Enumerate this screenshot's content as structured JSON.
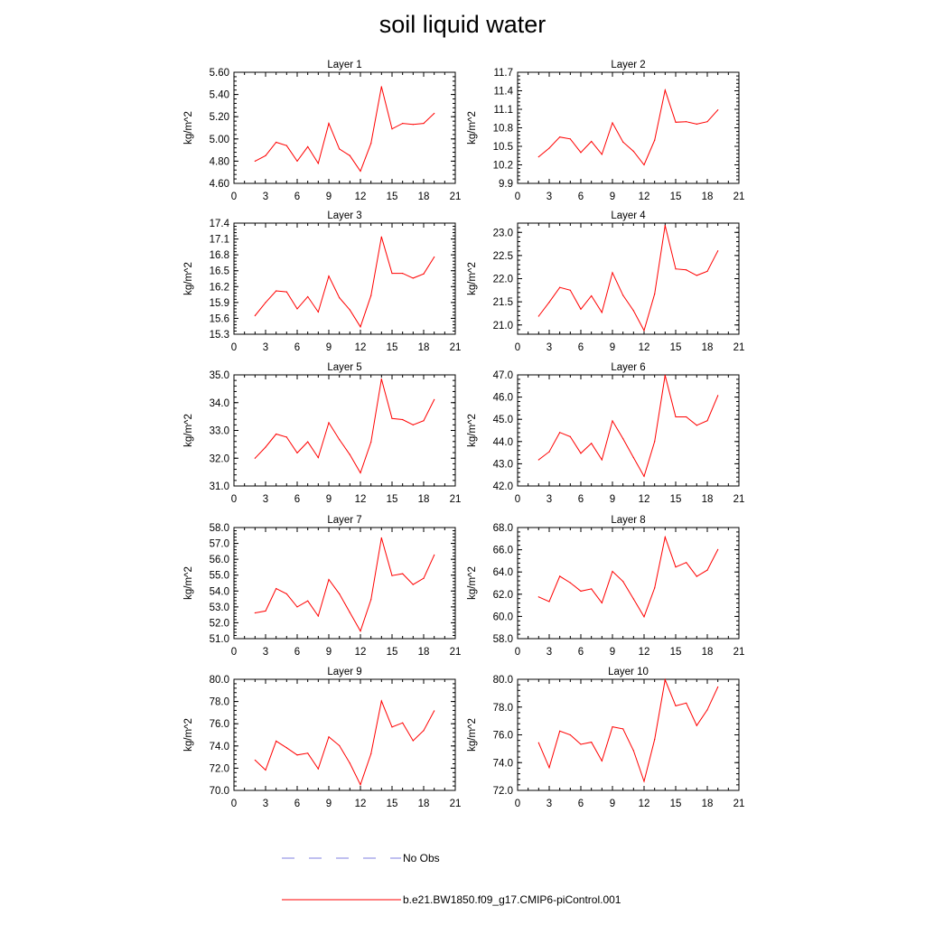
{
  "title": "soil liquid water",
  "colors": {
    "model": "#ff0000",
    "obs": "#8080e0",
    "axis": "#000000"
  },
  "legend": [
    {
      "label": "No Obs",
      "style": "dashed",
      "color": "#8080e0"
    },
    {
      "label": "b.e21.BW1850.f09_g17.CMIP6-piControl.001",
      "style": "solid",
      "color": "#ff0000"
    }
  ],
  "chart_data": [
    {
      "type": "line",
      "title": "Layer 1",
      "ylabel": "kg/m^2",
      "xlim": [
        0,
        21
      ],
      "xticks": [
        0,
        3,
        6,
        9,
        12,
        15,
        18,
        21
      ],
      "ylim": [
        4.6,
        5.6
      ],
      "yticks": [
        "4.60",
        "4.80",
        "5.00",
        "5.20",
        "5.40",
        "5.60"
      ],
      "x": [
        2,
        3,
        4,
        5,
        6,
        7,
        8,
        9,
        10,
        11,
        12,
        13,
        14,
        15,
        16,
        17,
        18,
        19
      ],
      "series": [
        {
          "values": [
            4.8,
            4.85,
            4.97,
            4.94,
            4.8,
            4.93,
            4.78,
            5.14,
            4.91,
            4.85,
            4.71,
            4.96,
            5.47,
            5.09,
            5.14,
            5.13,
            5.14,
            5.23
          ]
        }
      ]
    },
    {
      "type": "line",
      "title": "Layer 2",
      "ylabel": "kg/m^2",
      "xlim": [
        0,
        21
      ],
      "xticks": [
        0,
        3,
        6,
        9,
        12,
        15,
        18,
        21
      ],
      "ylim": [
        9.9,
        11.7
      ],
      "yticks": [
        "9.9",
        "10.2",
        "10.5",
        "10.8",
        "11.1",
        "11.4",
        "11.7"
      ],
      "x": [
        2,
        3,
        4,
        5,
        6,
        7,
        8,
        9,
        10,
        11,
        12,
        13,
        14,
        15,
        16,
        17,
        18,
        19
      ],
      "series": [
        {
          "values": [
            10.33,
            10.47,
            10.65,
            10.62,
            10.4,
            10.58,
            10.37,
            10.88,
            10.57,
            10.42,
            10.2,
            10.6,
            11.41,
            10.89,
            10.9,
            10.86,
            10.9,
            11.09
          ]
        }
      ]
    },
    {
      "type": "line",
      "title": "Layer 3",
      "ylabel": "kg/m^2",
      "xlim": [
        0,
        21
      ],
      "xticks": [
        0,
        3,
        6,
        9,
        12,
        15,
        18,
        21
      ],
      "ylim": [
        15.3,
        17.4
      ],
      "yticks": [
        "15.3",
        "15.6",
        "15.9",
        "16.2",
        "16.5",
        "16.8",
        "17.1",
        "17.4"
      ],
      "x": [
        2,
        3,
        4,
        5,
        6,
        7,
        8,
        9,
        10,
        11,
        12,
        13,
        14,
        15,
        16,
        17,
        18,
        19
      ],
      "series": [
        {
          "values": [
            15.65,
            15.9,
            16.12,
            16.1,
            15.78,
            16.01,
            15.72,
            16.4,
            15.99,
            15.76,
            15.44,
            16.03,
            17.14,
            16.45,
            16.45,
            16.36,
            16.44,
            16.76
          ]
        }
      ]
    },
    {
      "type": "line",
      "title": "Layer 4",
      "ylabel": "kg/m^2",
      "xlim": [
        0,
        21
      ],
      "xticks": [
        0,
        3,
        6,
        9,
        12,
        15,
        18,
        21
      ],
      "ylim": [
        20.8,
        23.2
      ],
      "yticks": [
        "21.0",
        "21.5",
        "22.0",
        "22.5",
        "23.0"
      ],
      "x": [
        2,
        3,
        4,
        5,
        6,
        7,
        8,
        9,
        10,
        11,
        12,
        13,
        14,
        15,
        16,
        17,
        18,
        19
      ],
      "series": [
        {
          "values": [
            21.19,
            21.49,
            21.81,
            21.75,
            21.34,
            21.63,
            21.27,
            22.13,
            21.64,
            21.31,
            20.88,
            21.67,
            23.15,
            22.21,
            22.19,
            22.07,
            22.16,
            22.6
          ]
        }
      ]
    },
    {
      "type": "line",
      "title": "Layer 5",
      "ylabel": "kg/m^2",
      "xlim": [
        0,
        21
      ],
      "xticks": [
        0,
        3,
        6,
        9,
        12,
        15,
        18,
        21
      ],
      "ylim": [
        31.0,
        35.0
      ],
      "yticks": [
        "31.0",
        "32.0",
        "33.0",
        "34.0",
        "35.0"
      ],
      "x": [
        2,
        3,
        4,
        5,
        6,
        7,
        8,
        9,
        10,
        11,
        12,
        13,
        14,
        15,
        16,
        17,
        18,
        19
      ],
      "series": [
        {
          "values": [
            32.0,
            32.4,
            32.87,
            32.76,
            32.19,
            32.59,
            32.02,
            33.28,
            32.67,
            32.13,
            31.47,
            32.58,
            34.85,
            33.43,
            33.39,
            33.2,
            33.35,
            34.11
          ]
        }
      ]
    },
    {
      "type": "line",
      "title": "Layer 6",
      "ylabel": "kg/m^2",
      "xlim": [
        0,
        21
      ],
      "xticks": [
        0,
        3,
        6,
        9,
        12,
        15,
        18,
        21
      ],
      "ylim": [
        42.0,
        47.0
      ],
      "yticks": [
        "42.0",
        "43.0",
        "44.0",
        "45.0",
        "46.0",
        "47.0"
      ],
      "x": [
        2,
        3,
        4,
        5,
        6,
        7,
        8,
        9,
        10,
        11,
        12,
        13,
        14,
        15,
        16,
        17,
        18,
        19
      ],
      "series": [
        {
          "values": [
            43.18,
            43.54,
            44.41,
            44.22,
            43.47,
            43.92,
            43.18,
            44.93,
            44.13,
            43.28,
            42.43,
            44.0,
            46.98,
            45.11,
            45.11,
            44.73,
            44.94,
            46.07
          ]
        }
      ]
    },
    {
      "type": "line",
      "title": "Layer 7",
      "ylabel": "kg/m^2",
      "xlim": [
        0,
        21
      ],
      "xticks": [
        0,
        3,
        6,
        9,
        12,
        15,
        18,
        21
      ],
      "ylim": [
        51.0,
        58.0
      ],
      "yticks": [
        "51.0",
        "52.0",
        "53.0",
        "54.0",
        "55.0",
        "56.0",
        "57.0",
        "58.0"
      ],
      "x": [
        2,
        3,
        4,
        5,
        6,
        7,
        8,
        9,
        10,
        11,
        12,
        13,
        14,
        15,
        16,
        17,
        18,
        19
      ],
      "series": [
        {
          "values": [
            52.62,
            52.74,
            54.16,
            53.82,
            53.0,
            53.38,
            52.42,
            54.73,
            53.82,
            52.65,
            51.48,
            53.46,
            57.35,
            54.97,
            55.09,
            54.41,
            54.8,
            56.27
          ]
        }
      ]
    },
    {
      "type": "line",
      "title": "Layer 8",
      "ylabel": "kg/m^2",
      "xlim": [
        0,
        21
      ],
      "xticks": [
        0,
        3,
        6,
        9,
        12,
        15,
        18,
        21
      ],
      "ylim": [
        58.0,
        68.0
      ],
      "yticks": [
        "58.0",
        "60.0",
        "62.0",
        "64.0",
        "66.0",
        "68.0"
      ],
      "x": [
        2,
        3,
        4,
        5,
        6,
        7,
        8,
        9,
        10,
        11,
        12,
        13,
        14,
        15,
        16,
        17,
        18,
        19
      ],
      "series": [
        {
          "values": [
            61.76,
            61.33,
            63.62,
            63.03,
            62.28,
            62.48,
            61.22,
            64.06,
            63.15,
            61.58,
            59.97,
            62.56,
            67.14,
            64.45,
            64.85,
            63.6,
            64.17,
            66.02
          ]
        }
      ]
    },
    {
      "type": "line",
      "title": "Layer 9",
      "ylabel": "kg/m^2",
      "xlim": [
        0,
        21
      ],
      "xticks": [
        0,
        3,
        6,
        9,
        12,
        15,
        18,
        21
      ],
      "ylim": [
        70.0,
        80.0
      ],
      "yticks": [
        "70.0",
        "72.0",
        "74.0",
        "76.0",
        "78.0",
        "80.0"
      ],
      "x": [
        2,
        3,
        4,
        5,
        6,
        7,
        8,
        9,
        10,
        11,
        12,
        13,
        14,
        15,
        16,
        17,
        18,
        19
      ],
      "series": [
        {
          "values": [
            72.73,
            71.83,
            74.44,
            73.84,
            73.19,
            73.35,
            71.94,
            74.82,
            74.03,
            72.45,
            70.51,
            73.29,
            78.05,
            75.7,
            76.08,
            74.47,
            75.39,
            77.16
          ]
        }
      ]
    },
    {
      "type": "line",
      "title": "Layer 10",
      "ylabel": "kg/m^2",
      "xlim": [
        0,
        21
      ],
      "xticks": [
        0,
        3,
        6,
        9,
        12,
        15,
        18,
        21
      ],
      "ylim": [
        72.0,
        80.0
      ],
      "yticks": [
        "72.0",
        "74.0",
        "76.0",
        "78.0",
        "80.0"
      ],
      "x": [
        2,
        3,
        4,
        5,
        6,
        7,
        8,
        9,
        10,
        11,
        12,
        13,
        14,
        15,
        16,
        17,
        18,
        19
      ],
      "series": [
        {
          "values": [
            75.43,
            73.64,
            76.27,
            76.0,
            75.32,
            75.47,
            74.12,
            76.58,
            76.43,
            74.87,
            72.65,
            75.67,
            79.97,
            78.09,
            78.29,
            76.67,
            77.8,
            79.45
          ]
        }
      ]
    }
  ]
}
